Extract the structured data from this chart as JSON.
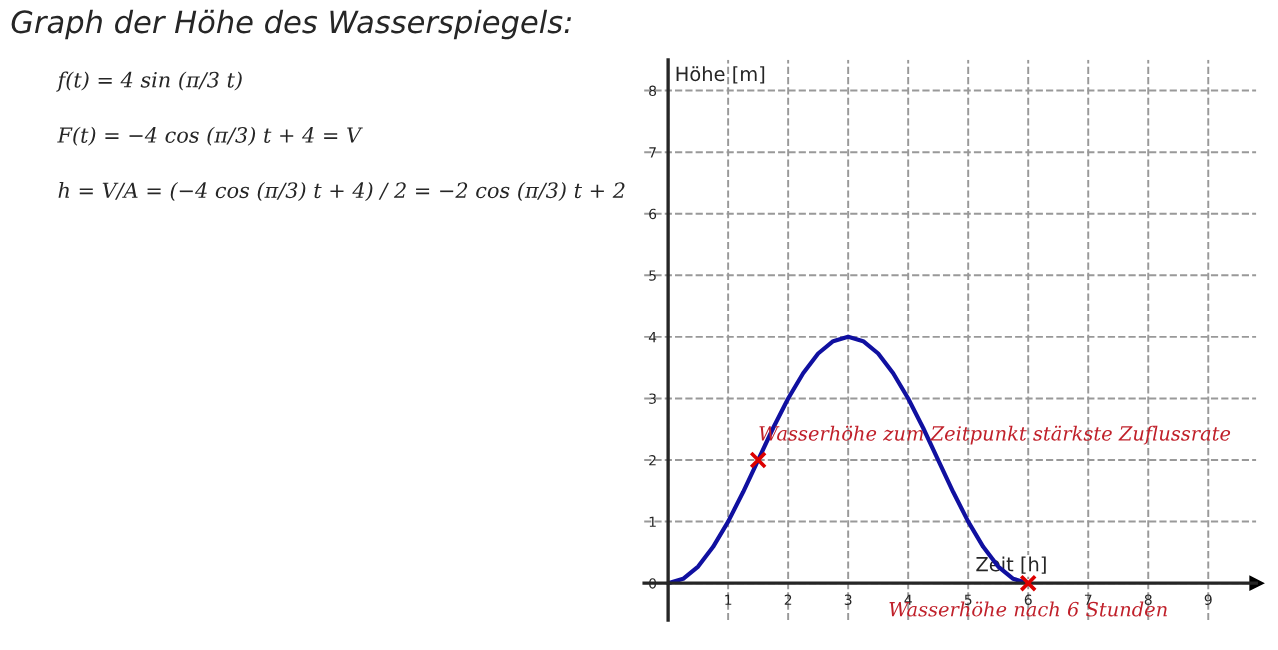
{
  "chart_data": {
    "type": "line",
    "title": "Graph der Höhe des Wasserspiegels:",
    "xlabel": "Zeit [h]",
    "ylabel": "Höhe [m]",
    "x": [
      0,
      0.25,
      0.5,
      0.75,
      1,
      1.25,
      1.5,
      1.75,
      2,
      2.25,
      2.5,
      2.75,
      3,
      3.25,
      3.5,
      3.75,
      4,
      4.25,
      4.5,
      4.75,
      5,
      5.25,
      5.5,
      5.75,
      6
    ],
    "series": [
      {
        "color": "#1010a0",
        "line_style": "solid",
        "marker": "none",
        "values": [
          0,
          0.07,
          0.27,
          0.59,
          1,
          1.48,
          2,
          2.52,
          3,
          3.41,
          3.73,
          3.93,
          4,
          3.93,
          3.73,
          3.41,
          3,
          2.52,
          2,
          1.48,
          1,
          0.59,
          0.27,
          0.07,
          0
        ]
      },
      {
        "type": "scatter",
        "color": "#dd0000",
        "marker": "cross",
        "x": [
          1.5,
          6
        ],
        "values": [
          2,
          0
        ]
      }
    ],
    "annotations": [
      "f(t) = 4 sin (π/3 t)",
      "F(t) = −4 cos (π/3) t + 4 = V",
      "h = V/A = (−4 cos (π/3) t + 4) / 2 = −2 cos (π/3) t + 2",
      {
        "text": "Wasserhöhe zum Zeitpunkt stärkste Zuflussrate",
        "x": 1.5,
        "y": 2
      },
      {
        "text": "Wasserhöhe nach 6 Stunden",
        "x": 6,
        "y": 0
      }
    ],
    "xlim": [
      -0.4,
      9.8
    ],
    "ylim": [
      -0.6,
      8.5
    ],
    "xticks": [
      {
        "value": 0,
        "label": null
      },
      1,
      2,
      3,
      4,
      5,
      6,
      7,
      8,
      9
    ],
    "yticks": [
      0,
      1,
      2,
      3,
      4,
      5,
      6,
      7,
      8
    ],
    "grid": true,
    "legend": false
  }
}
